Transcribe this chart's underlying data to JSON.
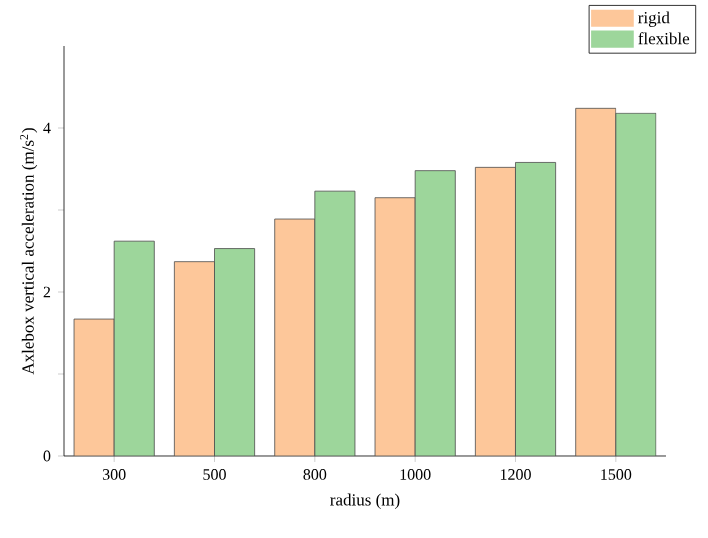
{
  "chart_data": {
    "type": "bar",
    "xlabel": "radius (m)",
    "ylabel": "Axlebox vertical acceleration (m/s$^{2}$)",
    "categories": [
      "300",
      "500",
      "800",
      "1000",
      "1200",
      "1500"
    ],
    "series": [
      {
        "name": "rigid",
        "color": "#fdc79a",
        "values": [
          1.67,
          2.37,
          2.89,
          3.15,
          3.52,
          4.24
        ]
      },
      {
        "name": "flexible",
        "color": "#9dd69b",
        "values": [
          2.62,
          2.53,
          3.23,
          3.48,
          3.58,
          4.18
        ]
      }
    ],
    "ylim": [
      0,
      5
    ],
    "yticks": [
      0,
      {
        "value": 1,
        "label": null
      },
      2,
      {
        "value": 3,
        "label": null
      },
      4
    ],
    "legend": "top right"
  }
}
